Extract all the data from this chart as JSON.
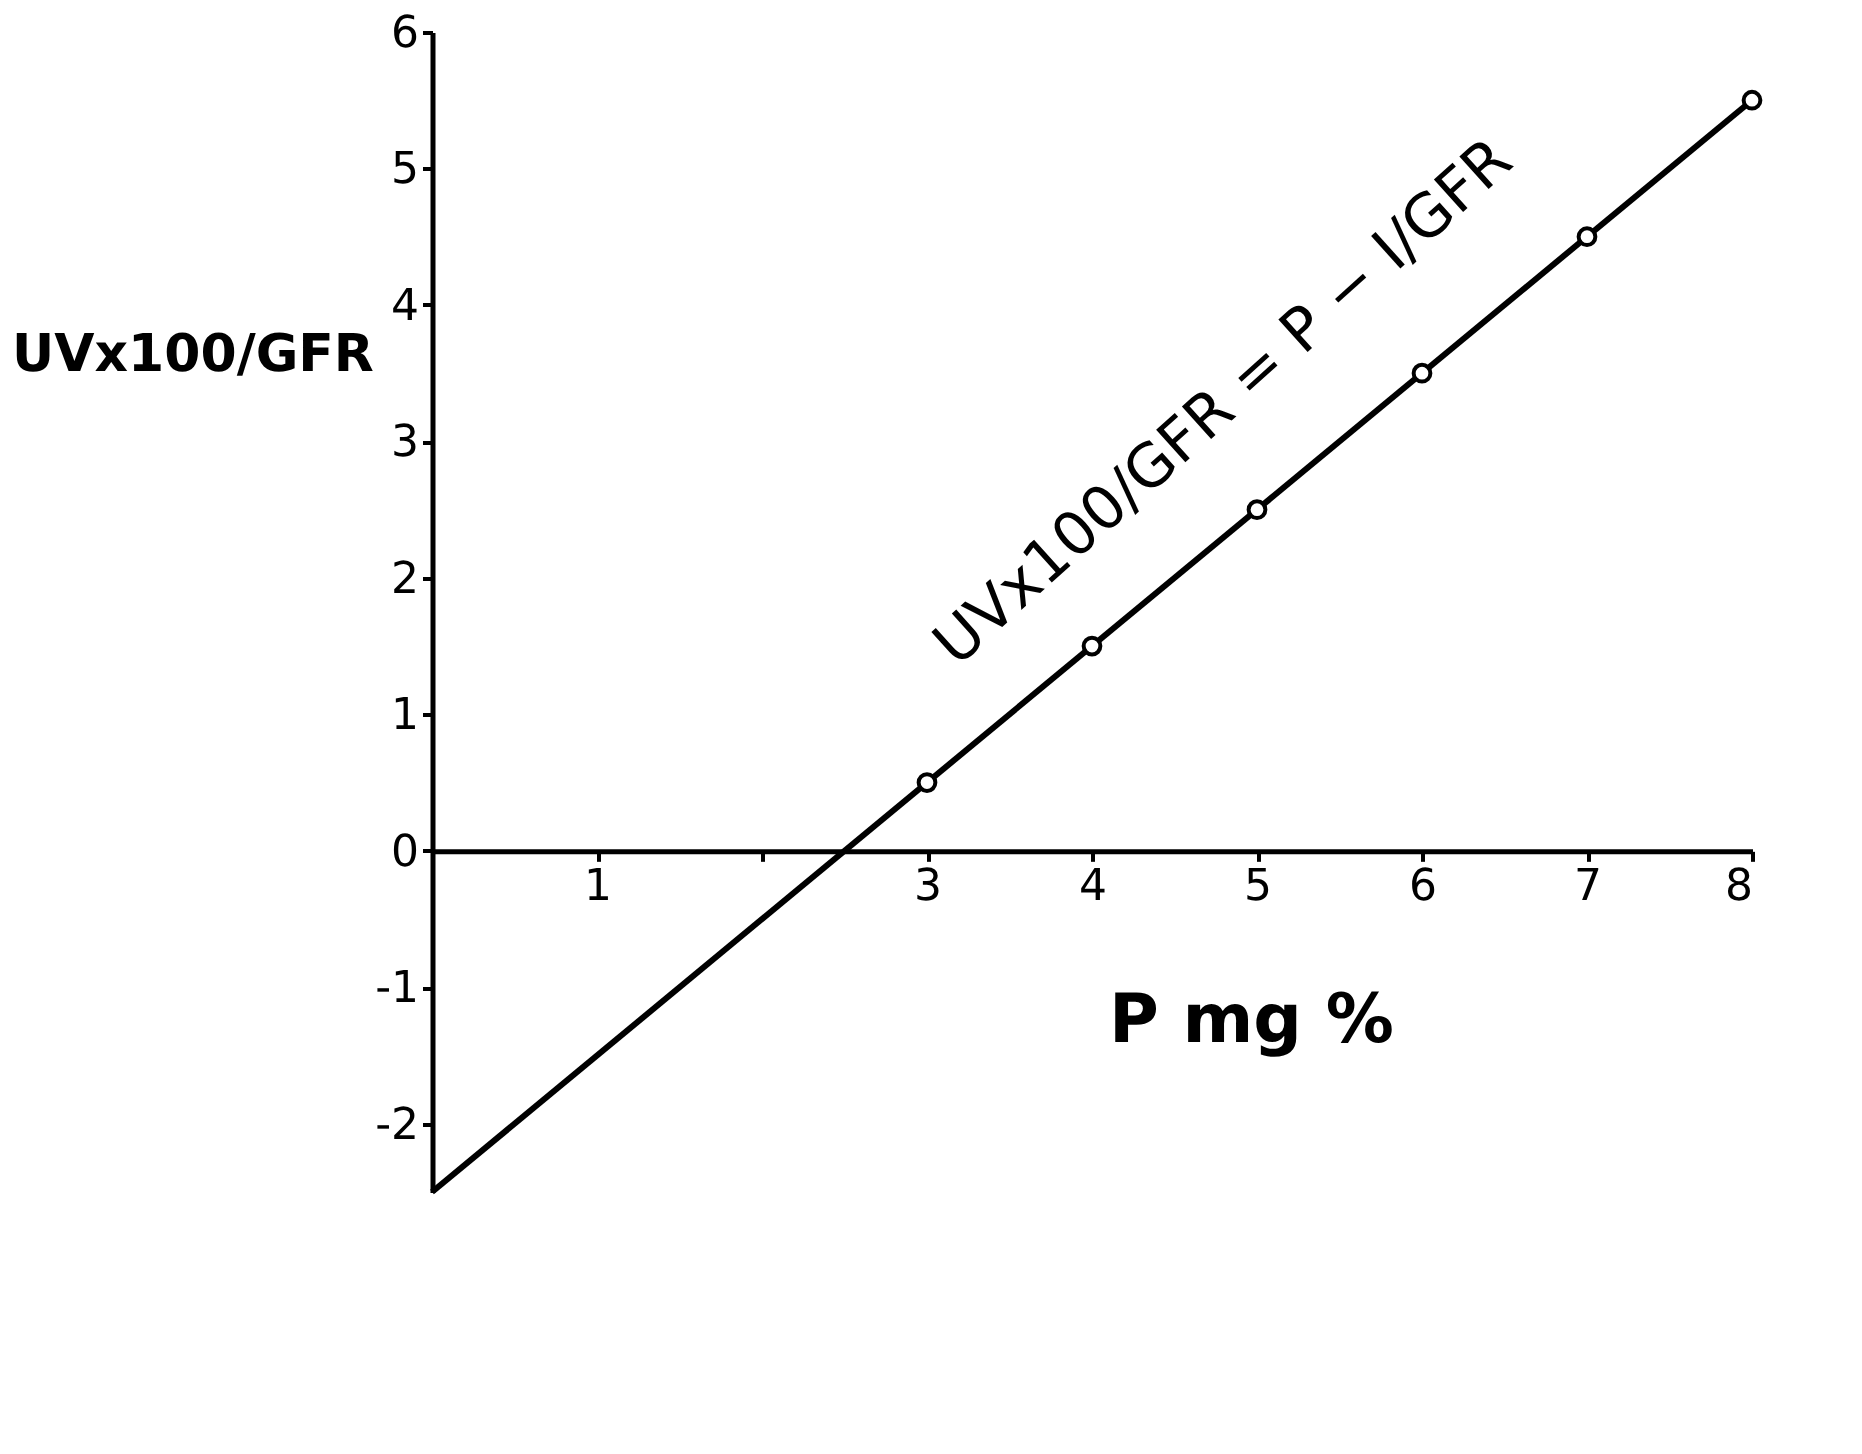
{
  "chart_data": {
    "type": "line",
    "xlabel": "P mg %",
    "ylabel": "UVx100/GFR",
    "annotations": [
      "UVx100/GFR = P − I/GFR"
    ],
    "series": [
      {
        "color": "#000000",
        "x": [
          0,
          8
        ],
        "values": [
          -2.5,
          5.5
        ],
        "marker": "none"
      },
      {
        "type": "scatter",
        "color": "#000000",
        "x": [
          3,
          4,
          5,
          6,
          7,
          8
        ],
        "values": [
          0.5,
          1.5,
          2.5,
          3.5,
          4.5,
          5.5
        ],
        "marker": "circle"
      }
    ],
    "xlim": [
      0,
      8
    ],
    "xticks": [
      1,
      {
        "value": 2,
        "label": null
      },
      3,
      4,
      5,
      6,
      7,
      8
    ],
    "ylim": [
      -2.5,
      6
    ],
    "yticks": [
      -2,
      -1,
      0,
      1,
      2,
      3,
      4,
      5,
      6
    ],
    "grid": false
  }
}
